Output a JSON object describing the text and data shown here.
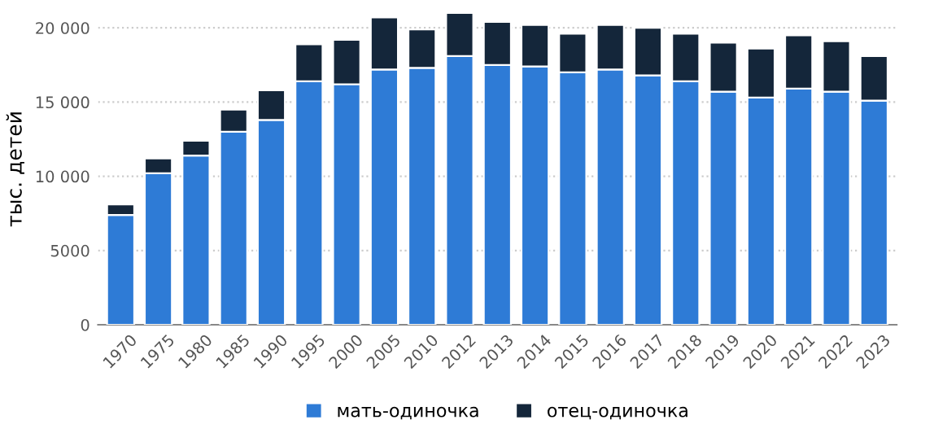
{
  "chart_data": {
    "type": "bar",
    "stacked": true,
    "ylabel": "тыс. детей",
    "categories": [
      "1970",
      "1975",
      "1980",
      "1985",
      "1990",
      "1995",
      "2000",
      "2005",
      "2010",
      "2012",
      "2013",
      "2014",
      "2015",
      "2016",
      "2017",
      "2018",
      "2019",
      "2020",
      "2021",
      "2022",
      "2023"
    ],
    "series": [
      {
        "name": "мать-одиночка",
        "color": "#2e7bd6",
        "values": [
          7400,
          10200,
          11400,
          13000,
          13800,
          16400,
          16200,
          17200,
          17300,
          18100,
          17500,
          17400,
          17000,
          17200,
          16800,
          16400,
          15700,
          15300,
          15900,
          15700,
          15100
        ]
      },
      {
        "name": "отец-одиночка",
        "color": "#14263a",
        "values": [
          700,
          1000,
          1000,
          1500,
          2000,
          2500,
          3000,
          3500,
          2600,
          2900,
          2900,
          2800,
          2600,
          3000,
          3200,
          3200,
          3300,
          3300,
          3600,
          3400,
          3000
        ]
      }
    ],
    "ylim": [
      0,
      21000
    ],
    "yticks": [
      0,
      {
        "value": 5000,
        "label": "5000"
      },
      {
        "value": 10000,
        "label": "10 000"
      },
      {
        "value": 15000,
        "label": "15 000"
      },
      {
        "value": 20000,
        "label": "20 000"
      }
    ],
    "grid": "y",
    "legend": "bottom"
  }
}
